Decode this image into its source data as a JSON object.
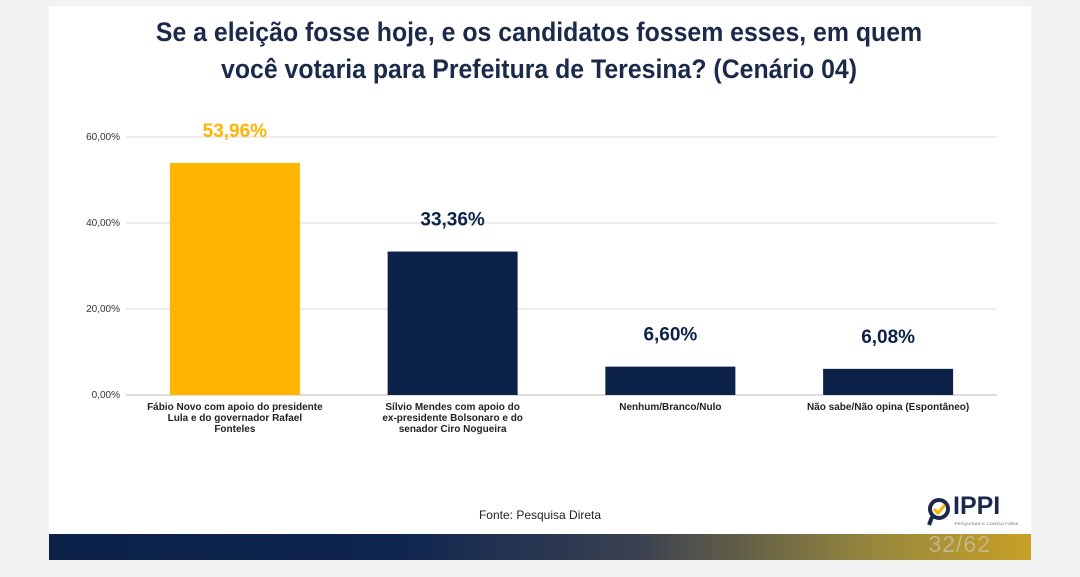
{
  "slide": {
    "title": "Se a eleição fosse hoje, e os candidatos fossem esses, em quem você votaria para Prefeitura de Teresina? (Cenário 04)",
    "source": "Fonte: Pesquisa Direta",
    "page_number": "32/62",
    "logo_text": "IPPI",
    "logo_sub": "PESQUISAS E CONSULTORIA"
  },
  "colors": {
    "highlight": "#ffb400",
    "primary": "#0c2249",
    "axis": "#cccccc"
  },
  "chart_data": {
    "type": "bar",
    "title": "Se a eleição fosse hoje, e os candidatos fossem esses, em quem você votaria para Prefeitura de Teresina? (Cenário 04)",
    "categories": [
      [
        "Fábio Novo com apoio do presidente",
        "Lula e do governador Rafael",
        "Fonteles"
      ],
      [
        "Sílvio Mendes com apoio do",
        "ex-presidente Bolsonaro e do",
        "senador Ciro Nogueira"
      ],
      [
        "Nenhum/Branco/Nulo"
      ],
      [
        "Não sabe/Não opina (Espontâneo)"
      ]
    ],
    "values": [
      53.96,
      33.36,
      6.6,
      6.08
    ],
    "data_labels": [
      "53,96%",
      "33,36%",
      "6,60%",
      "6,08%"
    ],
    "bar_colors": [
      "#ffb400",
      "#0c2249",
      "#0c2249",
      "#0c2249"
    ],
    "y_ticks": [
      0,
      20,
      40,
      60
    ],
    "y_tick_labels": [
      "0,00%",
      "20,00%",
      "40,00%",
      "60,00%"
    ],
    "ylim": [
      0,
      60
    ],
    "grid": true,
    "legend": "none",
    "xlabel": "",
    "ylabel": ""
  }
}
